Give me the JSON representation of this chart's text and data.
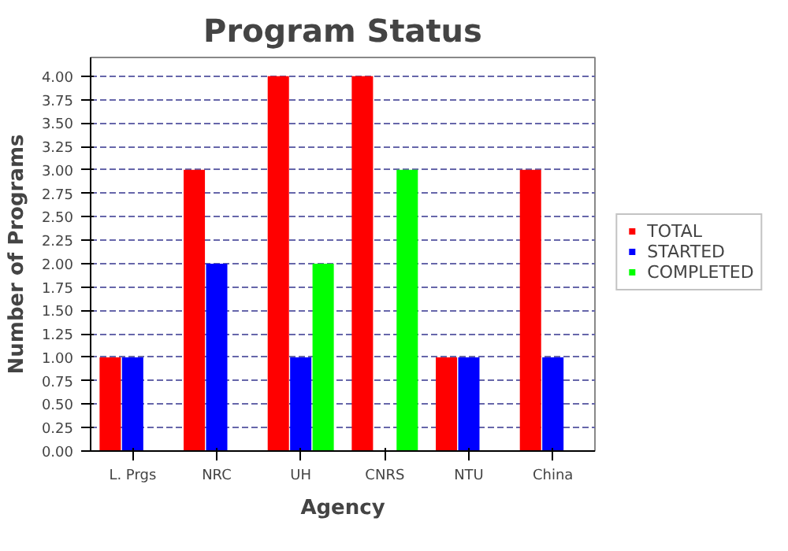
{
  "chart_data": {
    "type": "bar",
    "title": "Program Status",
    "xlabel": "Agency",
    "ylabel": "Number of Programs",
    "categories": [
      "L. Prgs",
      "NRC",
      "UH",
      "CNRS",
      "NTU",
      "China"
    ],
    "series": [
      {
        "name": "TOTAL",
        "color": "#ff0000",
        "values": [
          1,
          3,
          4,
          4,
          1,
          3
        ]
      },
      {
        "name": "STARTED",
        "color": "#0000ff",
        "values": [
          1,
          2,
          1,
          0,
          1,
          1
        ]
      },
      {
        "name": "COMPLETED",
        "color": "#00ff00",
        "values": [
          0,
          0,
          2,
          3,
          0,
          0
        ]
      }
    ],
    "ylim": [
      0,
      4.2
    ],
    "yticks": [
      {
        "value": 0,
        "label": "0.00"
      },
      {
        "value": 0.25,
        "label": "0.25"
      },
      {
        "value": 0.5,
        "label": "0.50"
      },
      {
        "value": 0.75,
        "label": "0.75"
      },
      {
        "value": 1,
        "label": "1.00"
      },
      {
        "value": 1.25,
        "label": "1.25"
      },
      {
        "value": 1.5,
        "label": "1.50"
      },
      {
        "value": 1.75,
        "label": "1.75"
      },
      {
        "value": 2,
        "label": "2.00"
      },
      {
        "value": 2.25,
        "label": "2.25"
      },
      {
        "value": 2.5,
        "label": "2.50"
      },
      {
        "value": 2.75,
        "label": "2.75"
      },
      {
        "value": 3,
        "label": "3.00"
      },
      {
        "value": 3.25,
        "label": "3.25"
      },
      {
        "value": 3.5,
        "label": "3.50"
      },
      {
        "value": 3.75,
        "label": "3.75"
      },
      {
        "value": 4,
        "label": "4.00"
      }
    ],
    "grid": "y",
    "legend": "right"
  }
}
